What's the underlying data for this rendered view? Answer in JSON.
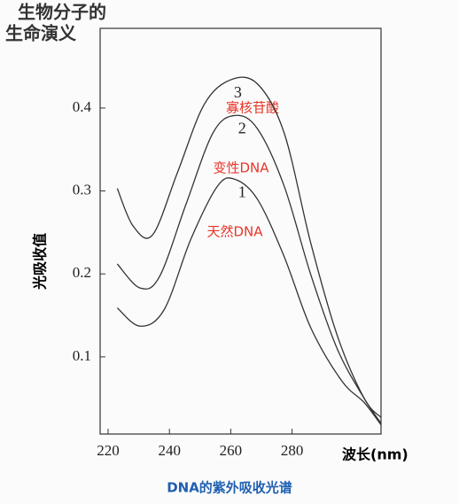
{
  "chart_data": {
    "type": "line",
    "logo": [
      "生物分子的",
      "生命演义"
    ],
    "ylabel": "光吸收值",
    "xlabel": "波长(nm)",
    "caption": "DNA的紫外吸收光谱",
    "annotations": [
      "寡核苷酸",
      "变性DNA",
      "天然DNA"
    ],
    "xlim": [
      217.4,
      309
    ],
    "ylim": [
      0.007,
      0.496
    ],
    "xticks": [
      220,
      240,
      260,
      280
    ],
    "yticks": [
      0.1,
      0.2,
      0.3,
      0.4
    ],
    "series": [
      {
        "name": "3",
        "color": "#333333",
        "x": [
          223,
          228.1,
          234.5,
          242.6,
          251.3,
          260,
          268.7,
          277.4,
          286.1,
          294.8,
          303.5,
          309
        ],
        "values": [
          0.303,
          0.258,
          0.247,
          0.322,
          0.404,
          0.434,
          0.429,
          0.37,
          0.237,
          0.125,
          0.05,
          0.027
        ]
      },
      {
        "name": "2",
        "color": "#333333",
        "x": [
          223,
          230.4,
          236.8,
          245.5,
          254.2,
          261.4,
          268.7,
          277.4,
          286.1,
          294.8,
          303.5,
          309
        ],
        "values": [
          0.212,
          0.183,
          0.197,
          0.285,
          0.37,
          0.391,
          0.375,
          0.306,
          0.199,
          0.109,
          0.05,
          0.02
        ]
      },
      {
        "name": "1",
        "color": "#333333",
        "x": [
          223,
          230.4,
          238.3,
          247,
          255.7,
          261.4,
          268.7,
          277.4,
          286.1,
          296.2,
          303.5,
          309
        ],
        "values": [
          0.159,
          0.137,
          0.157,
          0.242,
          0.306,
          0.314,
          0.29,
          0.221,
          0.135,
          0.071,
          0.045,
          0.018
        ]
      }
    ]
  }
}
